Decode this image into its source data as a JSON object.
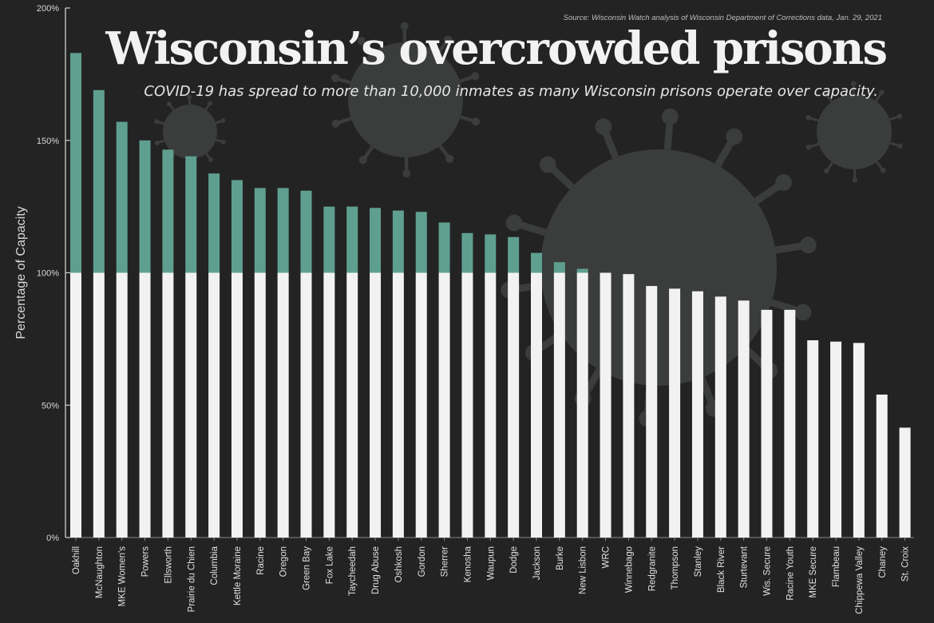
{
  "title": "Wisconsin’s overcrowded prisons",
  "subtitle": "COVID-19 has spread to more than 10,000 inmates as many Wisconsin prisons operate over capacity.",
  "source": "Source: Wisconsin Watch analysis of Wisconsin Department of Corrections data, Jan. 29, 2021",
  "colors": {
    "background": "#232323",
    "under_capacity": "#f2f2f2",
    "over_capacity": "#5f9f90",
    "axis": "#cfcfcf",
    "virus": "#3a3d3c"
  },
  "chart_data": {
    "type": "bar",
    "stacked": true,
    "ylabel": "Percentage of Capacity",
    "xlabel": "",
    "ylim": [
      0,
      200
    ],
    "yticks": [
      0,
      50,
      100,
      150,
      200
    ],
    "ytick_labels": [
      "0%",
      "50%",
      "100%",
      "150%",
      "200%"
    ],
    "threshold": 100,
    "categories": [
      "Oakhill",
      "McNaughton",
      "MKE Women's",
      "Powers",
      "Ellsworth",
      "Prairie du Chien",
      "Columbia",
      "Kettle Moraine",
      "Racine",
      "Oregon",
      "Green Bay",
      "Fox Lake",
      "Taycheedah",
      "Drug Abuse",
      "Oshkosh",
      "Gordon",
      "Sherrer",
      "Kenosha",
      "Waupun",
      "Dodge",
      "Jackson",
      "Burke",
      "New Lisbon",
      "WRC",
      "Winnebago",
      "Redgranite",
      "Thompson",
      "Stanley",
      "Black River",
      "Sturtevant",
      "Wis. Secure",
      "Racine Youth",
      "MKE Secure",
      "Flambeau",
      "Chippewa Valley",
      "Chaney",
      "St. Croix"
    ],
    "values": [
      183,
      169,
      157,
      150,
      146.5,
      144,
      137.5,
      135,
      132,
      132,
      131,
      125,
      125,
      124.5,
      123.5,
      123,
      119,
      115,
      114.5,
      113.5,
      107.5,
      104,
      101.5,
      100,
      99.5,
      95,
      94,
      93,
      91,
      89.5,
      86,
      86,
      74.5,
      74,
      73.5,
      54,
      41.5
    ],
    "series": [
      {
        "name": "Within capacity",
        "color": "#f2f2f2"
      },
      {
        "name": "Over capacity",
        "color": "#5f9f90"
      }
    ]
  }
}
